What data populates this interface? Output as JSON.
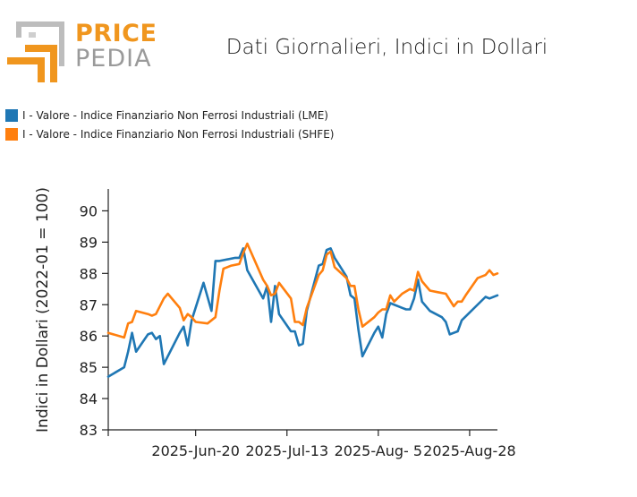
{
  "header": {
    "brand_top": "PRICE",
    "brand_bottom": "PEDIA",
    "title": "Dati Giornalieri, Indici in Dollari"
  },
  "colors": {
    "lme": "#1f77b4",
    "shfe": "#ff7f0e",
    "logo_orange": "#f0961e",
    "logo_gray": "#9a9a9a"
  },
  "chart_data": {
    "type": "line",
    "title": "Dati Giornalieri, Indici in Dollari",
    "xlabel": "",
    "ylabel": "Indici in Dollari (2022-01 = 100)",
    "ylim": [
      83,
      90.7
    ],
    "yticks": [
      83,
      84,
      85,
      86,
      87,
      88,
      89,
      90
    ],
    "xlim": [
      "2025-05-29",
      "2025-09-04"
    ],
    "xticks": [
      {
        "date": "2025-06-20",
        "label": "2025-Jun-20"
      },
      {
        "date": "2025-07-13",
        "label": "2025-Jul-13"
      },
      {
        "date": "2025-08-05",
        "label": "2025-Aug- 5"
      },
      {
        "date": "2025-08-28",
        "label": "2025-Aug-28"
      }
    ],
    "legend_position": "top-left",
    "grid": false,
    "series": [
      {
        "name": "I - Valore - Indice Finanziario Non Ferrosi Industriali (LME)",
        "color": "#1f77b4",
        "points": [
          [
            "2025-05-29",
            84.7
          ],
          [
            "2025-06-02",
            85.0
          ],
          [
            "2025-06-03",
            85.5
          ],
          [
            "2025-06-04",
            86.1
          ],
          [
            "2025-06-05",
            85.5
          ],
          [
            "2025-06-08",
            86.05
          ],
          [
            "2025-06-09",
            86.1
          ],
          [
            "2025-06-10",
            85.9
          ],
          [
            "2025-06-11",
            86.0
          ],
          [
            "2025-06-12",
            85.1
          ],
          [
            "2025-06-16",
            86.1
          ],
          [
            "2025-06-17",
            86.3
          ],
          [
            "2025-06-18",
            85.7
          ],
          [
            "2025-06-19",
            86.5
          ],
          [
            "2025-06-22",
            87.7
          ],
          [
            "2025-06-24",
            86.8
          ],
          [
            "2025-06-25",
            88.4
          ],
          [
            "2025-06-26",
            88.4
          ],
          [
            "2025-06-30",
            88.5
          ],
          [
            "2025-07-01",
            88.5
          ],
          [
            "2025-07-02",
            88.8
          ],
          [
            "2025-07-03",
            88.1
          ],
          [
            "2025-07-07",
            87.2
          ],
          [
            "2025-07-08",
            87.6
          ],
          [
            "2025-07-09",
            86.45
          ],
          [
            "2025-07-10",
            87.6
          ],
          [
            "2025-07-11",
            86.7
          ],
          [
            "2025-07-14",
            86.15
          ],
          [
            "2025-07-15",
            86.15
          ],
          [
            "2025-07-16",
            85.7
          ],
          [
            "2025-07-17",
            85.75
          ],
          [
            "2025-07-18",
            86.8
          ],
          [
            "2025-07-21",
            88.25
          ],
          [
            "2025-07-22",
            88.3
          ],
          [
            "2025-07-23",
            88.75
          ],
          [
            "2025-07-24",
            88.8
          ],
          [
            "2025-07-25",
            88.5
          ],
          [
            "2025-07-28",
            87.9
          ],
          [
            "2025-07-29",
            87.3
          ],
          [
            "2025-07-30",
            87.2
          ],
          [
            "2025-07-31",
            86.2
          ],
          [
            "2025-08-01",
            85.35
          ],
          [
            "2025-08-04",
            86.1
          ],
          [
            "2025-08-05",
            86.3
          ],
          [
            "2025-08-06",
            85.95
          ],
          [
            "2025-08-07",
            86.7
          ],
          [
            "2025-08-08",
            87.05
          ],
          [
            "2025-08-11",
            86.9
          ],
          [
            "2025-08-12",
            86.85
          ],
          [
            "2025-08-13",
            86.85
          ],
          [
            "2025-08-14",
            87.2
          ],
          [
            "2025-08-15",
            87.8
          ],
          [
            "2025-08-16",
            87.1
          ],
          [
            "2025-08-18",
            86.8
          ],
          [
            "2025-08-21",
            86.6
          ],
          [
            "2025-08-22",
            86.45
          ],
          [
            "2025-08-23",
            86.05
          ],
          [
            "2025-08-25",
            86.15
          ],
          [
            "2025-08-26",
            86.5
          ],
          [
            "2025-09-01",
            87.25
          ],
          [
            "2025-09-02",
            87.2
          ],
          [
            "2025-09-04",
            87.3
          ]
        ]
      },
      {
        "name": "I - Valore - Indice Finanziario Non Ferrosi Industriali (SHFE)",
        "color": "#ff7f0e",
        "points": [
          [
            "2025-05-29",
            86.1
          ],
          [
            "2025-06-02",
            85.95
          ],
          [
            "2025-06-03",
            86.4
          ],
          [
            "2025-06-04",
            86.45
          ],
          [
            "2025-06-05",
            86.8
          ],
          [
            "2025-06-08",
            86.7
          ],
          [
            "2025-06-09",
            86.65
          ],
          [
            "2025-06-10",
            86.7
          ],
          [
            "2025-06-12",
            87.2
          ],
          [
            "2025-06-13",
            87.35
          ],
          [
            "2025-06-16",
            86.9
          ],
          [
            "2025-06-17",
            86.5
          ],
          [
            "2025-06-18",
            86.7
          ],
          [
            "2025-06-19",
            86.6
          ],
          [
            "2025-06-20",
            86.45
          ],
          [
            "2025-06-23",
            86.4
          ],
          [
            "2025-06-25",
            86.6
          ],
          [
            "2025-06-26",
            87.45
          ],
          [
            "2025-06-27",
            88.15
          ],
          [
            "2025-06-29",
            88.25
          ],
          [
            "2025-07-01",
            88.3
          ],
          [
            "2025-07-02",
            88.65
          ],
          [
            "2025-07-03",
            88.95
          ],
          [
            "2025-07-07",
            87.8
          ],
          [
            "2025-07-08",
            87.6
          ],
          [
            "2025-07-09",
            87.3
          ],
          [
            "2025-07-10",
            87.35
          ],
          [
            "2025-07-11",
            87.7
          ],
          [
            "2025-07-14",
            87.2
          ],
          [
            "2025-07-15",
            86.45
          ],
          [
            "2025-07-16",
            86.45
          ],
          [
            "2025-07-17",
            86.35
          ],
          [
            "2025-07-18",
            86.9
          ],
          [
            "2025-07-21",
            87.95
          ],
          [
            "2025-07-22",
            88.1
          ],
          [
            "2025-07-23",
            88.6
          ],
          [
            "2025-07-24",
            88.7
          ],
          [
            "2025-07-25",
            88.2
          ],
          [
            "2025-07-28",
            87.85
          ],
          [
            "2025-07-29",
            87.6
          ],
          [
            "2025-07-30",
            87.6
          ],
          [
            "2025-07-31",
            86.85
          ],
          [
            "2025-08-01",
            86.3
          ],
          [
            "2025-08-04",
            86.6
          ],
          [
            "2025-08-05",
            86.75
          ],
          [
            "2025-08-06",
            86.85
          ],
          [
            "2025-08-07",
            86.85
          ],
          [
            "2025-08-08",
            87.3
          ],
          [
            "2025-08-09",
            87.1
          ],
          [
            "2025-08-11",
            87.35
          ],
          [
            "2025-08-13",
            87.5
          ],
          [
            "2025-08-14",
            87.45
          ],
          [
            "2025-08-15",
            88.05
          ],
          [
            "2025-08-16",
            87.75
          ],
          [
            "2025-08-18",
            87.45
          ],
          [
            "2025-08-20",
            87.4
          ],
          [
            "2025-08-22",
            87.35
          ],
          [
            "2025-08-23",
            87.15
          ],
          [
            "2025-08-24",
            86.95
          ],
          [
            "2025-08-25",
            87.1
          ],
          [
            "2025-08-26",
            87.1
          ],
          [
            "2025-08-27",
            87.3
          ],
          [
            "2025-08-30",
            87.85
          ],
          [
            "2025-09-01",
            87.95
          ],
          [
            "2025-09-02",
            88.1
          ],
          [
            "2025-09-03",
            87.95
          ],
          [
            "2025-09-04",
            88.0
          ]
        ]
      }
    ]
  }
}
